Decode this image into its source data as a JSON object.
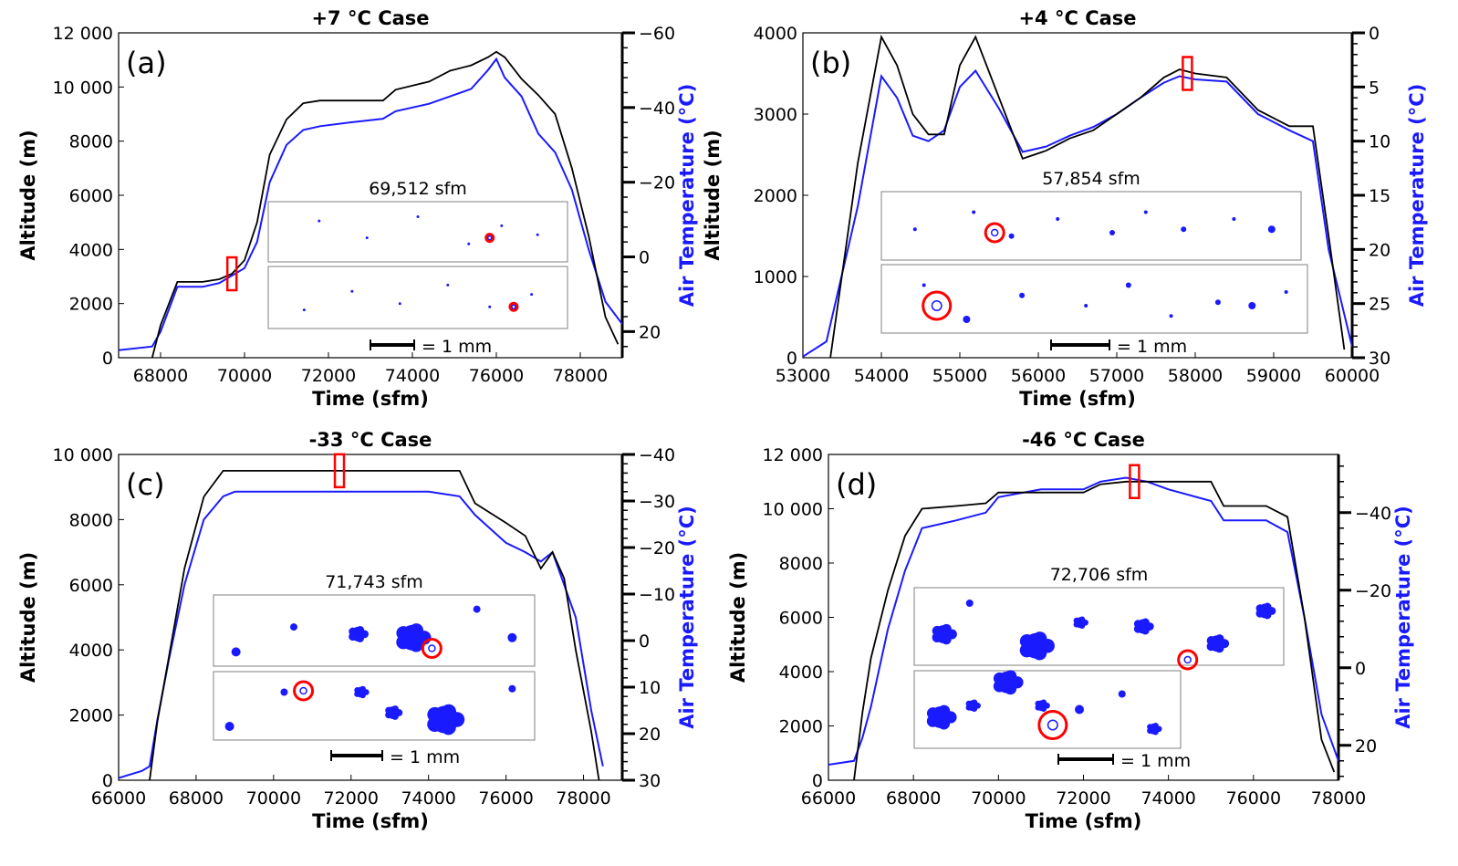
{
  "figure": {
    "scale_label": "= 1 mm",
    "colors": {
      "altitude": "#000000",
      "temperature": "#1a1aff",
      "marker": "#ff0000",
      "particle": "#1a1aff"
    }
  },
  "chart_data": [
    {
      "type": "line",
      "panel": "(a)",
      "title": "+7 °C Case",
      "xlabel": "Time (sfm)",
      "ylabel": "Altitude (m)",
      "y2label": "Air Temperature (°C)",
      "xlim": [
        67000,
        79000
      ],
      "ylim": [
        0,
        12000
      ],
      "y2lim": [
        27,
        -60
      ],
      "xticks": [
        "68000",
        "70000",
        "72000",
        "74000",
        "76000",
        "78000"
      ],
      "yticks": [
        "0",
        "2000",
        "4000",
        "6000",
        "8000",
        "10 000",
        "12 000"
      ],
      "y2ticks": [
        "20",
        "0",
        "−20",
        "−40",
        "−60"
      ],
      "y2tick_values": [
        20,
        0,
        -20,
        -40,
        -60
      ],
      "inset_label": "69,512 sfm",
      "marker_time": 69700,
      "altitude": {
        "name": "Altitude",
        "x": [
          67800,
          68000,
          68400,
          68700,
          69000,
          69400,
          69700,
          70000,
          70300,
          70600,
          71000,
          71400,
          71800,
          72500,
          73300,
          73600,
          74400,
          74900,
          75400,
          75800,
          76000,
          76200,
          76600,
          77000,
          77400,
          77800,
          78200,
          78600,
          78900
        ],
        "y": [
          0,
          1200,
          2800,
          2800,
          2800,
          2900,
          3100,
          3600,
          5000,
          7500,
          8800,
          9400,
          9500,
          9500,
          9500,
          9900,
          10200,
          10600,
          10800,
          11100,
          11300,
          11100,
          10300,
          9700,
          9000,
          7000,
          4500,
          1500,
          500
        ]
      },
      "temperature": {
        "name": "Air Temperature",
        "x": [
          67000,
          67800,
          68000,
          68400,
          68700,
          69000,
          69400,
          69700,
          70000,
          70300,
          70600,
          71000,
          71400,
          71800,
          72500,
          73300,
          73600,
          74400,
          74900,
          75400,
          75800,
          76000,
          76200,
          76600,
          77000,
          77400,
          77800,
          78200,
          78600,
          79000
        ],
        "y": [
          25,
          24,
          20,
          8,
          8,
          8,
          7,
          5,
          3,
          -4,
          -20,
          -30,
          -34,
          -35,
          -36,
          -37,
          -39,
          -41,
          -43,
          -45,
          -50,
          -53,
          -48,
          -43,
          -33,
          -28,
          -18,
          -2,
          12,
          18
        ]
      },
      "inset_particles": [
        [
          [
            0.17,
            0.32,
            1.5
          ],
          [
            0.33,
            0.6,
            1.5
          ],
          [
            0.5,
            0.25,
            1.5
          ],
          [
            0.67,
            0.7,
            1.5
          ],
          [
            0.78,
            0.4,
            1.5
          ],
          [
            0.9,
            0.55,
            1.5
          ]
        ],
        [
          [
            0.12,
            0.7,
            1.5
          ],
          [
            0.28,
            0.4,
            1.5
          ],
          [
            0.44,
            0.6,
            1.5
          ],
          [
            0.6,
            0.3,
            1.5
          ],
          [
            0.74,
            0.65,
            1.5
          ],
          [
            0.88,
            0.45,
            1.5
          ]
        ]
      ],
      "inset_circles": [
        [
          0.74,
          0.6,
          4
        ],
        [
          0.82,
          0.65,
          4
        ]
      ]
    },
    {
      "type": "line",
      "panel": "(b)",
      "title": "+4 °C Case",
      "xlabel": "Time (sfm)",
      "ylabel": "Altitude (m)",
      "y2label": "Air Temperature (°C)",
      "xlim": [
        53000,
        60000
      ],
      "ylim": [
        0,
        4000
      ],
      "y2lim": [
        30,
        0
      ],
      "xticks": [
        "53000",
        "54000",
        "55000",
        "56000",
        "57000",
        "58000",
        "59000",
        "60000"
      ],
      "yticks": [
        "0",
        "1000",
        "2000",
        "3000",
        "4000"
      ],
      "y2ticks": [
        "30",
        "25",
        "20",
        "15",
        "10",
        "5",
        "0"
      ],
      "y2tick_values": [
        30,
        25,
        20,
        15,
        10,
        5,
        0
      ],
      "inset_label": "57,854 sfm",
      "marker_time": 57900,
      "altitude": {
        "name": "Altitude",
        "x": [
          53350,
          53700,
          54000,
          54200,
          54400,
          54600,
          54800,
          55000,
          55200,
          55500,
          55800,
          56100,
          56400,
          56700,
          57000,
          57300,
          57600,
          57800,
          58000,
          58400,
          58800,
          59200,
          59500,
          59700,
          59900
        ],
        "y": [
          0,
          2400,
          3950,
          3600,
          3000,
          2750,
          2750,
          3600,
          3950,
          3200,
          2450,
          2550,
          2700,
          2800,
          3000,
          3200,
          3450,
          3550,
          3500,
          3450,
          3050,
          2850,
          2850,
          1500,
          100
        ]
      },
      "temperature": {
        "name": "Air Temperature",
        "x": [
          53000,
          53300,
          53700,
          54000,
          54200,
          54400,
          54600,
          54800,
          55000,
          55200,
          55500,
          55800,
          56100,
          56400,
          56700,
          57000,
          57300,
          57600,
          57800,
          58000,
          58400,
          58800,
          59200,
          59500,
          59700,
          60000
        ],
        "y": [
          29.9,
          28.5,
          16,
          4,
          6,
          9.5,
          10,
          9,
          5,
          3.5,
          7,
          11,
          10.5,
          9.5,
          8.7,
          7.5,
          6,
          4.6,
          4,
          4.3,
          4.5,
          7.5,
          9,
          10,
          20,
          29
        ]
      },
      "inset_particles": [
        [
          [
            0.08,
            0.55,
            2
          ],
          [
            0.22,
            0.3,
            2
          ],
          [
            0.31,
            0.65,
            3
          ],
          [
            0.42,
            0.4,
            2
          ],
          [
            0.55,
            0.6,
            3
          ],
          [
            0.63,
            0.3,
            2
          ],
          [
            0.72,
            0.55,
            3
          ],
          [
            0.84,
            0.4,
            2
          ],
          [
            0.93,
            0.55,
            4
          ]
        ],
        [
          [
            0.1,
            0.3,
            2
          ],
          [
            0.2,
            0.8,
            4
          ],
          [
            0.33,
            0.45,
            3
          ],
          [
            0.48,
            0.6,
            2
          ],
          [
            0.58,
            0.3,
            3
          ],
          [
            0.68,
            0.75,
            2
          ],
          [
            0.79,
            0.55,
            3
          ],
          [
            0.87,
            0.6,
            4
          ],
          [
            0.95,
            0.4,
            2
          ]
        ]
      ],
      "inset_circles": [
        [
          0.27,
          0.6,
          10
        ],
        [
          0.13,
          0.6,
          15
        ]
      ]
    },
    {
      "type": "line",
      "panel": "(c)",
      "title": "-33 °C Case",
      "xlabel": "Time (sfm)",
      "ylabel": "Altitude (m)",
      "y2label": "Air Temperature (°C)",
      "xlim": [
        66000,
        79000
      ],
      "ylim": [
        0,
        10000
      ],
      "y2lim": [
        30,
        -40
      ],
      "xticks": [
        "66000",
        "68000",
        "70000",
        "72000",
        "74000",
        "76000",
        "78000"
      ],
      "yticks": [
        "0",
        "2000",
        "4000",
        "6000",
        "8000",
        "10 000"
      ],
      "y2ticks": [
        "30",
        "20",
        "10",
        "0",
        "−10",
        "−20",
        "−30",
        "−40"
      ],
      "y2tick_values": [
        30,
        20,
        10,
        0,
        -10,
        -20,
        -30,
        -40
      ],
      "inset_label": "71,743 sfm",
      "marker_time": 71700,
      "altitude": {
        "name": "Altitude",
        "x": [
          66800,
          67000,
          67300,
          67700,
          68200,
          68700,
          69000,
          70000,
          72000,
          74000,
          74800,
          75200,
          75600,
          76000,
          76500,
          76900,
          77200,
          77500,
          77800,
          78200,
          78400
        ],
        "y": [
          0,
          1800,
          3800,
          6500,
          8700,
          9500,
          9500,
          9500,
          9500,
          9500,
          9500,
          8500,
          8200,
          7900,
          7500,
          6500,
          7000,
          6200,
          4000,
          1500,
          0
        ]
      },
      "temperature": {
        "name": "Air Temperature",
        "x": [
          66000,
          66600,
          66800,
          67000,
          67300,
          67700,
          68200,
          68700,
          69000,
          70000,
          72000,
          74000,
          74800,
          75200,
          75600,
          76000,
          76500,
          76900,
          77200,
          77500,
          77800,
          78200,
          78500
        ],
        "y": [
          29.5,
          28,
          27,
          17,
          4,
          -12,
          -26,
          -31,
          -32,
          -32,
          -32,
          -32,
          -31,
          -27,
          -24,
          -21,
          -19,
          -17,
          -19,
          -12,
          -5,
          15,
          27
        ]
      },
      "inset_particles": [
        [
          [
            0.07,
            0.8,
            5
          ],
          [
            0.25,
            0.45,
            4
          ],
          [
            0.45,
            0.55,
            8
          ],
          [
            0.62,
            0.6,
            14
          ],
          [
            0.82,
            0.2,
            4
          ],
          [
            0.93,
            0.6,
            5
          ]
        ],
        [
          [
            0.05,
            0.8,
            5
          ],
          [
            0.22,
            0.3,
            4
          ],
          [
            0.46,
            0.3,
            6
          ],
          [
            0.56,
            0.6,
            7
          ],
          [
            0.72,
            0.7,
            15
          ],
          [
            0.93,
            0.25,
            4
          ]
        ]
      ],
      "inset_circles": [
        [
          0.68,
          0.75,
          10
        ],
        [
          0.28,
          0.28,
          10
        ]
      ]
    },
    {
      "type": "line",
      "panel": "(d)",
      "title": "-46 °C Case",
      "xlabel": "Time (sfm)",
      "ylabel": "Altitude (m)",
      "y2label": "Air Temperature (°C)",
      "xlim": [
        66000,
        78000
      ],
      "ylim": [
        0,
        12000
      ],
      "y2lim": [
        29,
        -55
      ],
      "xticks": [
        "66000",
        "68000",
        "70000",
        "72000",
        "74000",
        "76000",
        "78000"
      ],
      "yticks": [
        "0",
        "2000",
        "4000",
        "6000",
        "8000",
        "10 000",
        "12 000"
      ],
      "y2ticks": [
        "20",
        "0",
        "−20",
        "−40"
      ],
      "y2tick_values": [
        20,
        0,
        -20,
        -40
      ],
      "inset_label": "72,706 sfm",
      "marker_time": 73200,
      "altitude": {
        "name": "Altitude",
        "x": [
          66600,
          66800,
          67000,
          67400,
          67800,
          68200,
          69000,
          69700,
          70000,
          71000,
          72000,
          72400,
          73000,
          73500,
          74000,
          75000,
          75300,
          76000,
          76300,
          76800,
          77200,
          77600,
          77900
        ],
        "y": [
          0,
          2500,
          4500,
          7000,
          9000,
          10000,
          10100,
          10200,
          10600,
          10600,
          10600,
          10900,
          11000,
          11000,
          11000,
          11000,
          10100,
          10100,
          10100,
          9700,
          6000,
          1500,
          300
        ]
      },
      "temperature": {
        "name": "Air Temperature",
        "x": [
          66000,
          66600,
          66800,
          67000,
          67400,
          67800,
          68200,
          69000,
          69700,
          70000,
          71000,
          72000,
          72400,
          73000,
          73500,
          74000,
          75000,
          75300,
          76000,
          76300,
          76800,
          77200,
          77600,
          78000
        ],
        "y": [
          25,
          24,
          18,
          10,
          -10,
          -25,
          -36,
          -38,
          -40,
          -44,
          -46,
          -46,
          -48,
          -49,
          -48,
          -46,
          -43,
          -38,
          -38,
          -38,
          -35,
          -13,
          12,
          24
        ]
      },
      "inset_particles": [
        [
          [
            0.08,
            0.6,
            10
          ],
          [
            0.15,
            0.2,
            4
          ],
          [
            0.33,
            0.75,
            14
          ],
          [
            0.45,
            0.45,
            6
          ],
          [
            0.62,
            0.5,
            8
          ],
          [
            0.82,
            0.72,
            9
          ],
          [
            0.95,
            0.3,
            8
          ]
        ],
        [
          [
            0.1,
            0.6,
            12
          ],
          [
            0.22,
            0.45,
            6
          ],
          [
            0.35,
            0.15,
            12
          ],
          [
            0.48,
            0.45,
            6
          ],
          [
            0.62,
            0.5,
            5
          ],
          [
            0.78,
            0.3,
            4
          ],
          [
            0.9,
            0.75,
            6
          ]
        ]
      ],
      "inset_circles": [
        [
          0.74,
          0.93,
          10
        ],
        [
          0.52,
          0.7,
          15
        ]
      ]
    }
  ]
}
